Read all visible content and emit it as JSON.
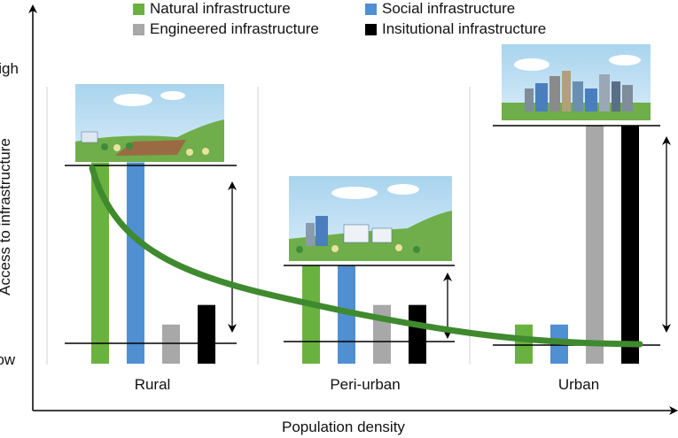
{
  "legend": [
    {
      "label": "Natural infrastructure",
      "color": "#6ab23f"
    },
    {
      "label": "Social infrastructure",
      "color": "#4f8fd2"
    },
    {
      "label": "Engineered infrastructure",
      "color": "#a8a8a8"
    },
    {
      "label": "Insitutional infrastructure",
      "color": "#000000"
    }
  ],
  "axes": {
    "y_label": "Access to infrastructure",
    "y_high": "High",
    "y_low": "Low",
    "x_label": "Population density"
  },
  "chart_data": {
    "type": "bar",
    "categories": [
      "Rural",
      "Peri-urban",
      "Urban"
    ],
    "ylim": [
      0,
      1
    ],
    "series": [
      {
        "name": "Natural infrastructure",
        "values": [
          0.72,
          0.35,
          0.14
        ]
      },
      {
        "name": "Social infrastructure",
        "values": [
          0.72,
          0.35,
          0.14
        ]
      },
      {
        "name": "Engineered infrastructure",
        "values": [
          0.14,
          0.21,
          0.85
        ]
      },
      {
        "name": "Insitutional infrastructure",
        "values": [
          0.21,
          0.21,
          0.85
        ]
      }
    ]
  }
}
